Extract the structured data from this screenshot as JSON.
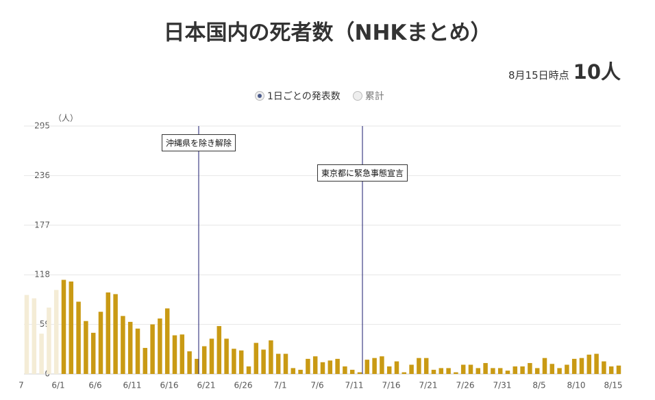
{
  "chart_data": {
    "type": "bar",
    "title": "日本国内の死者数（NHKまとめ）",
    "as_of": "8月15日時点",
    "latest": "10人",
    "options": [
      "1日ごとの発表数",
      "累計"
    ],
    "y_unit": "（人）",
    "categories": [
      "7",
      null,
      null,
      null,
      null,
      "6/1",
      null,
      null,
      null,
      null,
      "6/6",
      null,
      null,
      null,
      null,
      "6/11",
      null,
      null,
      null,
      null,
      "6/16",
      null,
      null,
      null,
      null,
      "6/21",
      null,
      null,
      null,
      null,
      "6/26",
      null,
      null,
      null,
      null,
      "7/1",
      null,
      null,
      null,
      null,
      "7/6",
      null,
      null,
      null,
      null,
      "7/11",
      null,
      null,
      null,
      null,
      "7/16",
      null,
      null,
      null,
      null,
      "7/21",
      null,
      null,
      null,
      null,
      "7/26",
      null,
      null,
      null,
      null,
      "7/31",
      null,
      null,
      null,
      null,
      "8/5",
      null,
      null,
      null,
      null,
      "8/10",
      null,
      null,
      null,
      null,
      "8/15"
    ],
    "series": [
      {
        "color": "#f4ecd6",
        "values": [
          94,
          90,
          48,
          79,
          100,
          null,
          null,
          null,
          null,
          null,
          null,
          null,
          null,
          null,
          null,
          null,
          null,
          null,
          null,
          null,
          null,
          null,
          null,
          null,
          null,
          null,
          null,
          null,
          null,
          null,
          null,
          null,
          null,
          null,
          null,
          null,
          null,
          null,
          null,
          null,
          null,
          null,
          null,
          null,
          null,
          null,
          null,
          null,
          null,
          null,
          null,
          null,
          null,
          null,
          null,
          null,
          null,
          null,
          null,
          null,
          null,
          null,
          null,
          null,
          null,
          null,
          null,
          null,
          null,
          null,
          null,
          null,
          null,
          null,
          null,
          null,
          null,
          null,
          null,
          null,
          null
        ]
      },
      {
        "color": "#c99a14",
        "values": [
          null,
          null,
          null,
          null,
          null,
          112,
          110,
          86,
          63,
          49,
          74,
          97,
          95,
          69,
          62,
          54,
          31,
          59,
          66,
          78,
          46,
          47,
          27,
          18,
          33,
          42,
          57,
          42,
          30,
          28,
          9,
          37,
          29,
          40,
          24,
          24,
          7,
          5,
          18,
          21,
          14,
          16,
          18,
          9,
          5,
          2,
          17,
          19,
          21,
          9,
          15,
          2,
          11,
          19,
          19,
          5,
          7,
          7,
          2,
          11,
          11,
          7,
          13,
          7,
          7,
          4,
          9,
          9,
          13,
          7,
          19,
          12,
          7,
          11,
          18,
          19,
          23,
          24,
          15,
          9,
          10
        ]
      }
    ],
    "ylim": [
      0,
      295
    ],
    "yticks": [
      0,
      59,
      118,
      177,
      236,
      295
    ],
    "grid": true,
    "annotations": [
      "沖縄県を除き解除",
      "東京都に緊急事態宣言"
    ]
  }
}
